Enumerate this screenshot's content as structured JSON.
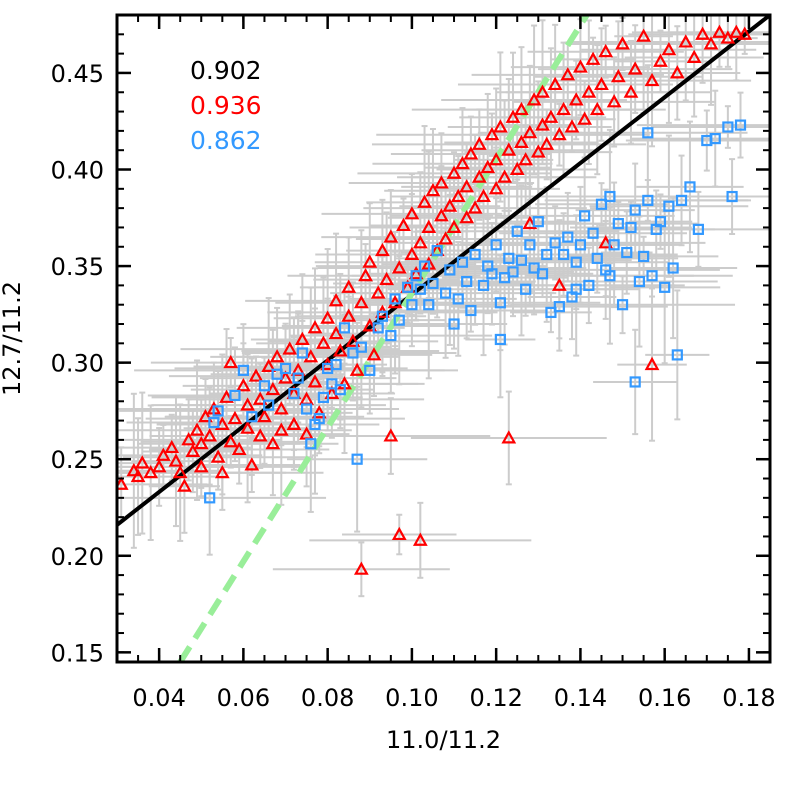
{
  "chart_data": {
    "type": "scatter",
    "xlabel": "11.0/11.2",
    "ylabel": "12.7/11.2",
    "xlim": [
      0.03,
      0.185
    ],
    "ylim": [
      0.145,
      0.48
    ],
    "x_ticks": [
      "0.04",
      "0.06",
      "0.08",
      "0.10",
      "0.12",
      "0.14",
      "0.16",
      "0.18"
    ],
    "y_ticks": [
      "0.15",
      "0.20",
      "0.25",
      "0.30",
      "0.35",
      "0.40",
      "0.45"
    ],
    "annotations": [
      {
        "text": "0.902",
        "color": "#000000"
      },
      {
        "text": "0.936",
        "color": "#ff0000"
      },
      {
        "text": "0.862",
        "color": "#3399ff"
      }
    ],
    "errorbar_color": "#cccccc",
    "series": [
      {
        "marker": "triangle",
        "color": "#ff0000",
        "points": [
          [
            0.031,
            0.237
          ],
          [
            0.034,
            0.244
          ],
          [
            0.035,
            0.241
          ],
          [
            0.036,
            0.248
          ],
          [
            0.038,
            0.243
          ],
          [
            0.04,
            0.246
          ],
          [
            0.041,
            0.252
          ],
          [
            0.043,
            0.256
          ],
          [
            0.044,
            0.249
          ],
          [
            0.045,
            0.243
          ],
          [
            0.046,
            0.236
          ],
          [
            0.047,
            0.26
          ],
          [
            0.048,
            0.254
          ],
          [
            0.049,
            0.265
          ],
          [
            0.05,
            0.258
          ],
          [
            0.05,
            0.246
          ],
          [
            0.051,
            0.272
          ],
          [
            0.052,
            0.262
          ],
          [
            0.053,
            0.276
          ],
          [
            0.054,
            0.251
          ],
          [
            0.055,
            0.268
          ],
          [
            0.055,
            0.243
          ],
          [
            0.056,
            0.282
          ],
          [
            0.057,
            0.259
          ],
          [
            0.057,
            0.3
          ],
          [
            0.058,
            0.271
          ],
          [
            0.059,
            0.255
          ],
          [
            0.06,
            0.288
          ],
          [
            0.061,
            0.266
          ],
          [
            0.061,
            0.278
          ],
          [
            0.062,
            0.247
          ],
          [
            0.063,
            0.293
          ],
          [
            0.064,
            0.281
          ],
          [
            0.064,
            0.262
          ],
          [
            0.065,
            0.272
          ],
          [
            0.066,
            0.298
          ],
          [
            0.067,
            0.286
          ],
          [
            0.067,
            0.258
          ],
          [
            0.068,
            0.303
          ],
          [
            0.069,
            0.276
          ],
          [
            0.069,
            0.265
          ],
          [
            0.07,
            0.292
          ],
          [
            0.071,
            0.307
          ],
          [
            0.072,
            0.284
          ],
          [
            0.072,
            0.268
          ],
          [
            0.073,
            0.296
          ],
          [
            0.074,
            0.312
          ],
          [
            0.075,
            0.281
          ],
          [
            0.075,
            0.263
          ],
          [
            0.076,
            0.303
          ],
          [
            0.077,
            0.318
          ],
          [
            0.077,
            0.29
          ],
          [
            0.078,
            0.274
          ],
          [
            0.079,
            0.31
          ],
          [
            0.08,
            0.323
          ],
          [
            0.08,
            0.299
          ],
          [
            0.081,
            0.284
          ],
          [
            0.082,
            0.315
          ],
          [
            0.082,
            0.332
          ],
          [
            0.083,
            0.306
          ],
          [
            0.084,
            0.289
          ],
          [
            0.085,
            0.324
          ],
          [
            0.085,
            0.339
          ],
          [
            0.086,
            0.311
          ],
          [
            0.087,
            0.296
          ],
          [
            0.088,
            0.331
          ],
          [
            0.088,
            0.193
          ],
          [
            0.089,
            0.345
          ],
          [
            0.09,
            0.319
          ],
          [
            0.09,
            0.352
          ],
          [
            0.091,
            0.304
          ],
          [
            0.092,
            0.336
          ],
          [
            0.093,
            0.358
          ],
          [
            0.093,
            0.326
          ],
          [
            0.094,
            0.343
          ],
          [
            0.095,
            0.262
          ],
          [
            0.095,
            0.365
          ],
          [
            0.096,
            0.331
          ],
          [
            0.097,
            0.211
          ],
          [
            0.097,
            0.349
          ],
          [
            0.098,
            0.371
          ],
          [
            0.099,
            0.339
          ],
          [
            0.1,
            0.356
          ],
          [
            0.1,
            0.377
          ],
          [
            0.101,
            0.346
          ],
          [
            0.102,
            0.208
          ],
          [
            0.102,
            0.362
          ],
          [
            0.103,
            0.383
          ],
          [
            0.104,
            0.351
          ],
          [
            0.104,
            0.37
          ],
          [
            0.105,
            0.389
          ],
          [
            0.106,
            0.358
          ],
          [
            0.107,
            0.376
          ],
          [
            0.107,
            0.393
          ],
          [
            0.108,
            0.364
          ],
          [
            0.109,
            0.381
          ],
          [
            0.11,
            0.398
          ],
          [
            0.11,
            0.37
          ],
          [
            0.111,
            0.386
          ],
          [
            0.112,
            0.403
          ],
          [
            0.113,
            0.375
          ],
          [
            0.113,
            0.391
          ],
          [
            0.114,
            0.408
          ],
          [
            0.115,
            0.38
          ],
          [
            0.116,
            0.396
          ],
          [
            0.116,
            0.413
          ],
          [
            0.117,
            0.386
          ],
          [
            0.118,
            0.401
          ],
          [
            0.119,
            0.418
          ],
          [
            0.12,
            0.39
          ],
          [
            0.12,
            0.405
          ],
          [
            0.121,
            0.422
          ],
          [
            0.122,
            0.396
          ],
          [
            0.123,
            0.261
          ],
          [
            0.123,
            0.41
          ],
          [
            0.124,
            0.427
          ],
          [
            0.125,
            0.4
          ],
          [
            0.126,
            0.414
          ],
          [
            0.126,
            0.431
          ],
          [
            0.127,
            0.405
          ],
          [
            0.128,
            0.419
          ],
          [
            0.129,
            0.436
          ],
          [
            0.13,
            0.409
          ],
          [
            0.131,
            0.423
          ],
          [
            0.131,
            0.44
          ],
          [
            0.132,
            0.413
          ],
          [
            0.133,
            0.427
          ],
          [
            0.134,
            0.444
          ],
          [
            0.135,
            0.418
          ],
          [
            0.136,
            0.431
          ],
          [
            0.137,
            0.449
          ],
          [
            0.138,
            0.422
          ],
          [
            0.139,
            0.436
          ],
          [
            0.14,
            0.453
          ],
          [
            0.141,
            0.426
          ],
          [
            0.142,
            0.44
          ],
          [
            0.143,
            0.457
          ],
          [
            0.144,
            0.431
          ],
          [
            0.145,
            0.444
          ],
          [
            0.146,
            0.461
          ],
          [
            0.148,
            0.435
          ],
          [
            0.149,
            0.448
          ],
          [
            0.15,
            0.465
          ],
          [
            0.152,
            0.44
          ],
          [
            0.153,
            0.452
          ],
          [
            0.155,
            0.469
          ],
          [
            0.157,
            0.446
          ],
          [
            0.159,
            0.456
          ],
          [
            0.161,
            0.462
          ],
          [
            0.163,
            0.45
          ],
          [
            0.165,
            0.466
          ],
          [
            0.167,
            0.458
          ],
          [
            0.169,
            0.47
          ],
          [
            0.171,
            0.465
          ],
          [
            0.173,
            0.471
          ],
          [
            0.175,
            0.468
          ],
          [
            0.177,
            0.471
          ],
          [
            0.179,
            0.47
          ],
          [
            0.157,
            0.299
          ],
          [
            0.146,
            0.362
          ],
          [
            0.135,
            0.34
          ],
          [
            0.128,
            0.372
          ]
        ]
      },
      {
        "marker": "square",
        "color": "#3399ff",
        "points": [
          [
            0.052,
            0.23
          ],
          [
            0.053,
            0.269
          ],
          [
            0.054,
            0.275
          ],
          [
            0.058,
            0.283
          ],
          [
            0.06,
            0.296
          ],
          [
            0.062,
            0.272
          ],
          [
            0.065,
            0.288
          ],
          [
            0.066,
            0.278
          ],
          [
            0.068,
            0.294
          ],
          [
            0.07,
            0.297
          ],
          [
            0.072,
            0.284
          ],
          [
            0.073,
            0.292
          ],
          [
            0.074,
            0.305
          ],
          [
            0.075,
            0.276
          ],
          [
            0.076,
            0.258
          ],
          [
            0.077,
            0.268
          ],
          [
            0.078,
            0.271
          ],
          [
            0.079,
            0.282
          ],
          [
            0.08,
            0.297
          ],
          [
            0.081,
            0.289
          ],
          [
            0.082,
            0.299
          ],
          [
            0.083,
            0.286
          ],
          [
            0.084,
            0.318
          ],
          [
            0.086,
            0.305
          ],
          [
            0.087,
            0.25
          ],
          [
            0.088,
            0.308
          ],
          [
            0.09,
            0.296
          ],
          [
            0.092,
            0.318
          ],
          [
            0.093,
            0.324
          ],
          [
            0.095,
            0.314
          ],
          [
            0.096,
            0.333
          ],
          [
            0.097,
            0.322
          ],
          [
            0.099,
            0.339
          ],
          [
            0.1,
            0.33
          ],
          [
            0.101,
            0.345
          ],
          [
            0.102,
            0.338
          ],
          [
            0.103,
            0.35
          ],
          [
            0.104,
            0.33
          ],
          [
            0.105,
            0.341
          ],
          [
            0.106,
            0.358
          ],
          [
            0.108,
            0.336
          ],
          [
            0.109,
            0.348
          ],
          [
            0.11,
            0.32
          ],
          [
            0.111,
            0.333
          ],
          [
            0.112,
            0.352
          ],
          [
            0.113,
            0.342
          ],
          [
            0.114,
            0.327
          ],
          [
            0.115,
            0.356
          ],
          [
            0.117,
            0.34
          ],
          [
            0.118,
            0.35
          ],
          [
            0.119,
            0.346
          ],
          [
            0.12,
            0.361
          ],
          [
            0.121,
            0.331
          ],
          [
            0.122,
            0.344
          ],
          [
            0.123,
            0.354
          ],
          [
            0.124,
            0.347
          ],
          [
            0.125,
            0.368
          ],
          [
            0.126,
            0.353
          ],
          [
            0.127,
            0.338
          ],
          [
            0.128,
            0.361
          ],
          [
            0.129,
            0.349
          ],
          [
            0.13,
            0.373
          ],
          [
            0.131,
            0.346
          ],
          [
            0.132,
            0.356
          ],
          [
            0.133,
            0.326
          ],
          [
            0.134,
            0.362
          ],
          [
            0.135,
            0.329
          ],
          [
            0.136,
            0.356
          ],
          [
            0.137,
            0.365
          ],
          [
            0.138,
            0.334
          ],
          [
            0.139,
            0.352
          ],
          [
            0.14,
            0.361
          ],
          [
            0.141,
            0.376
          ],
          [
            0.142,
            0.34
          ],
          [
            0.143,
            0.367
          ],
          [
            0.144,
            0.354
          ],
          [
            0.145,
            0.382
          ],
          [
            0.146,
            0.348
          ],
          [
            0.147,
            0.386
          ],
          [
            0.148,
            0.361
          ],
          [
            0.149,
            0.372
          ],
          [
            0.15,
            0.33
          ],
          [
            0.151,
            0.357
          ],
          [
            0.152,
            0.37
          ],
          [
            0.153,
            0.379
          ],
          [
            0.154,
            0.342
          ],
          [
            0.155,
            0.355
          ],
          [
            0.156,
            0.384
          ],
          [
            0.157,
            0.345
          ],
          [
            0.158,
            0.369
          ],
          [
            0.159,
            0.373
          ],
          [
            0.16,
            0.339
          ],
          [
            0.161,
            0.381
          ],
          [
            0.162,
            0.349
          ],
          [
            0.163,
            0.304
          ],
          [
            0.164,
            0.384
          ],
          [
            0.166,
            0.391
          ],
          [
            0.168,
            0.369
          ],
          [
            0.17,
            0.415
          ],
          [
            0.172,
            0.416
          ],
          [
            0.175,
            0.422
          ],
          [
            0.176,
            0.386
          ],
          [
            0.178,
            0.423
          ],
          [
            0.153,
            0.29
          ],
          [
            0.156,
            0.419
          ],
          [
            0.147,
            0.345
          ],
          [
            0.139,
            0.338
          ],
          [
            0.121,
            0.312
          ]
        ]
      }
    ],
    "lines": [
      {
        "style": "solid",
        "color": "#000000",
        "x": [
          0.03,
          0.185
        ],
        "y": [
          0.216,
          0.48
        ]
      },
      {
        "style": "dashed",
        "color": "#99ee99",
        "x": [
          0.045,
          0.1415
        ],
        "y": [
          0.145,
          0.48
        ]
      }
    ],
    "grid": false
  }
}
